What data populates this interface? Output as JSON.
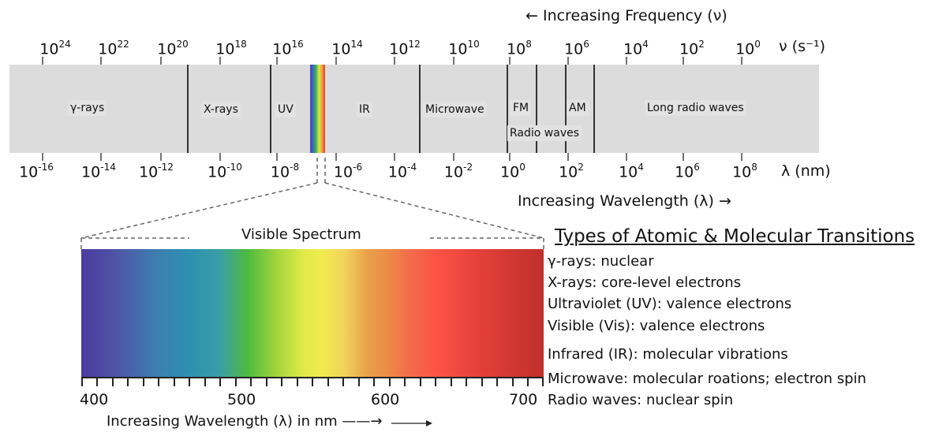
{
  "frequency_axis": {
    "arrow_label": "← Increasing Frequency (ν)",
    "unit": "ν (s⁻¹)",
    "tick_exponents": [
      "24",
      "22",
      "20",
      "18",
      "16",
      "14",
      "12",
      "10",
      "8",
      "6",
      "4",
      "2",
      "0"
    ]
  },
  "wavelength_axis": {
    "arrow_label": "Increasing Wavelength (λ) →",
    "unit": "λ (nm)",
    "tick_exponents": [
      "-16",
      "-14",
      "-12",
      "-10",
      "-8",
      "-6",
      "-4",
      "-2",
      "0",
      "2",
      "4",
      "6",
      "8"
    ]
  },
  "regions": {
    "gamma": "γ-rays",
    "xray": "X-rays",
    "uv": "UV",
    "ir": "IR",
    "microwave": "Microwave",
    "fm": "FM",
    "am": "AM",
    "radio": "Radio waves",
    "long_radio": "Long radio waves"
  },
  "visible": {
    "title": "Visible Spectrum",
    "tick_values": [
      "400",
      "500",
      "600",
      "700"
    ],
    "axis_label": "Increasing Wavelength (λ) in nm ——→"
  },
  "transitions": {
    "title": "Types of  Atomic & Molecular Transitions",
    "items": [
      "γ-rays: nuclear",
      "X-rays: core-level electrons",
      "Ultraviolet (UV): valence electrons",
      "Visible (Vis): valence electrons",
      "Infrared (IR): molecular vibrations",
      "Microwave: molecular roations; electron spin",
      "Radio waves: nuclear spin"
    ]
  },
  "colors": {
    "band_gray": "#dcdcdc",
    "divider": "#333333"
  }
}
